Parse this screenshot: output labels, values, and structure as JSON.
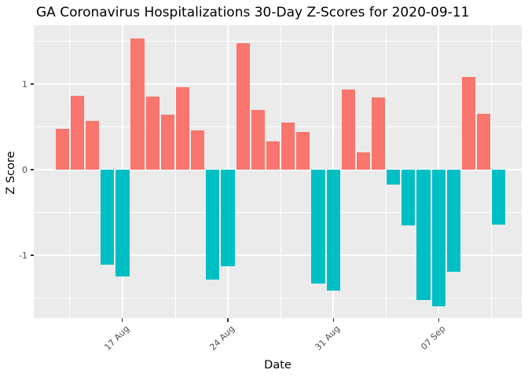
{
  "chart_data": {
    "type": "bar",
    "title": "GA Coronavirus Hospitalizations 30-Day Z-Scores for 2020-09-11",
    "xlabel": "Date",
    "ylabel": "Z Score",
    "x": [
      "2020-08-13",
      "2020-08-14",
      "2020-08-15",
      "2020-08-16",
      "2020-08-17",
      "2020-08-18",
      "2020-08-19",
      "2020-08-20",
      "2020-08-21",
      "2020-08-22",
      "2020-08-23",
      "2020-08-24",
      "2020-08-25",
      "2020-08-26",
      "2020-08-27",
      "2020-08-28",
      "2020-08-29",
      "2020-08-30",
      "2020-08-31",
      "2020-09-01",
      "2020-09-02",
      "2020-09-03",
      "2020-09-04",
      "2020-09-05",
      "2020-09-06",
      "2020-09-07",
      "2020-09-08",
      "2020-09-09",
      "2020-09-10",
      "2020-09-11"
    ],
    "values": [
      0.48,
      0.86,
      0.57,
      -1.11,
      -1.25,
      1.53,
      0.85,
      0.64,
      0.96,
      0.46,
      -1.28,
      -1.13,
      1.48,
      0.7,
      0.33,
      0.55,
      0.44,
      -1.33,
      -1.41,
      0.94,
      0.2,
      0.84,
      -0.17,
      -0.65,
      -1.52,
      -1.6,
      -1.19,
      1.08,
      0.65,
      -0.64
    ],
    "x_tick_labels": [
      "17 Aug",
      "24 Aug",
      "31 Aug",
      "07 Sep"
    ],
    "x_tick_day_indices": [
      4,
      11,
      18,
      25
    ],
    "y_tick_labels": [
      "-1",
      "0",
      "1"
    ],
    "y_tick_values": [
      -1,
      0,
      1
    ],
    "y_minor_grid_values": [
      -1.5,
      -0.5,
      0.5,
      1.5
    ],
    "ylim": [
      -1.75,
      1.66
    ],
    "grid": true,
    "legend_position": "none",
    "colors": {
      "positive_bar": "#F8766D",
      "negative_bar": "#00BFC4",
      "panel_background": "#EBEBEB",
      "gridline": "#FFFFFF",
      "tick_text": "#4D4D4D",
      "axis_title_text": "#000000",
      "title_text": "#000000",
      "outer_background": "#FFFFFF"
    }
  }
}
